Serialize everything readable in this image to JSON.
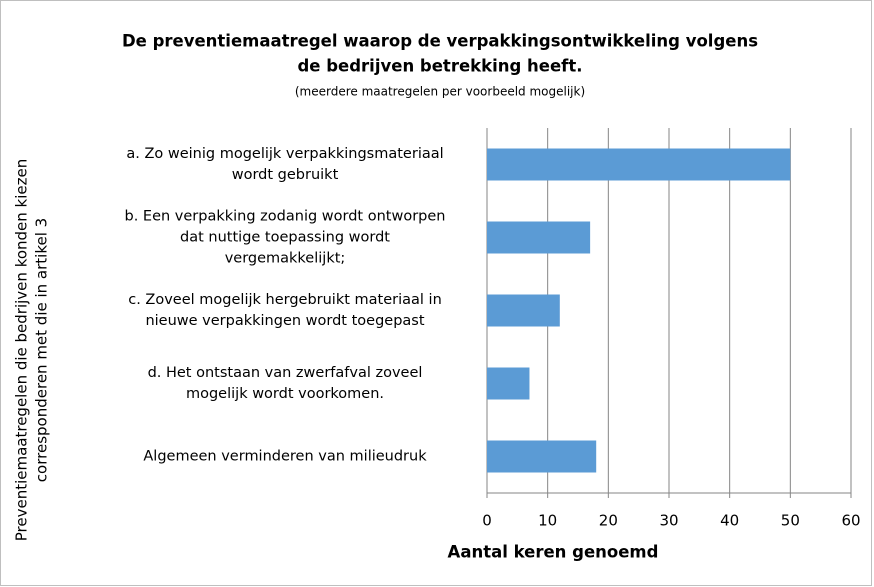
{
  "chart_data": {
    "type": "bar",
    "orientation": "horizontal",
    "title": [
      "De preventiemaatregel waarop de verpakkingsontwikkeling volgens",
      "de bedrijven betrekking heeft."
    ],
    "subtitle": "(meerdere maatregelen per voorbeeld mogelijk)",
    "y_label": [
      "Preventiemaatregelen die bedrijven konden kiezen",
      "corresponderen met die in artikel 3"
    ],
    "x_label": "Aantal keren genoemd",
    "categories": [
      [
        "a. Zo weinig mogelijk verpakkingsmateriaal",
        "wordt gebruikt"
      ],
      [
        "b. Een verpakking zodanig wordt ontworpen",
        "dat nuttige toepassing wordt",
        "vergemakkelijkt;"
      ],
      [
        "c. Zoveel mogelijk hergebruikt materiaal in",
        "nieuwe verpakkingen wordt toegepast"
      ],
      [
        "d. Het ontstaan van zwerfafval zoveel",
        "mogelijk wordt voorkomen."
      ],
      [
        "Algemeen verminderen van milieudruk"
      ]
    ],
    "values": [
      50,
      17,
      12,
      7,
      18
    ],
    "color": "#5b9bd5",
    "xlim": [
      0,
      60
    ],
    "xticks": [
      0,
      10,
      20,
      30,
      40,
      50,
      60
    ],
    "grid": true
  }
}
